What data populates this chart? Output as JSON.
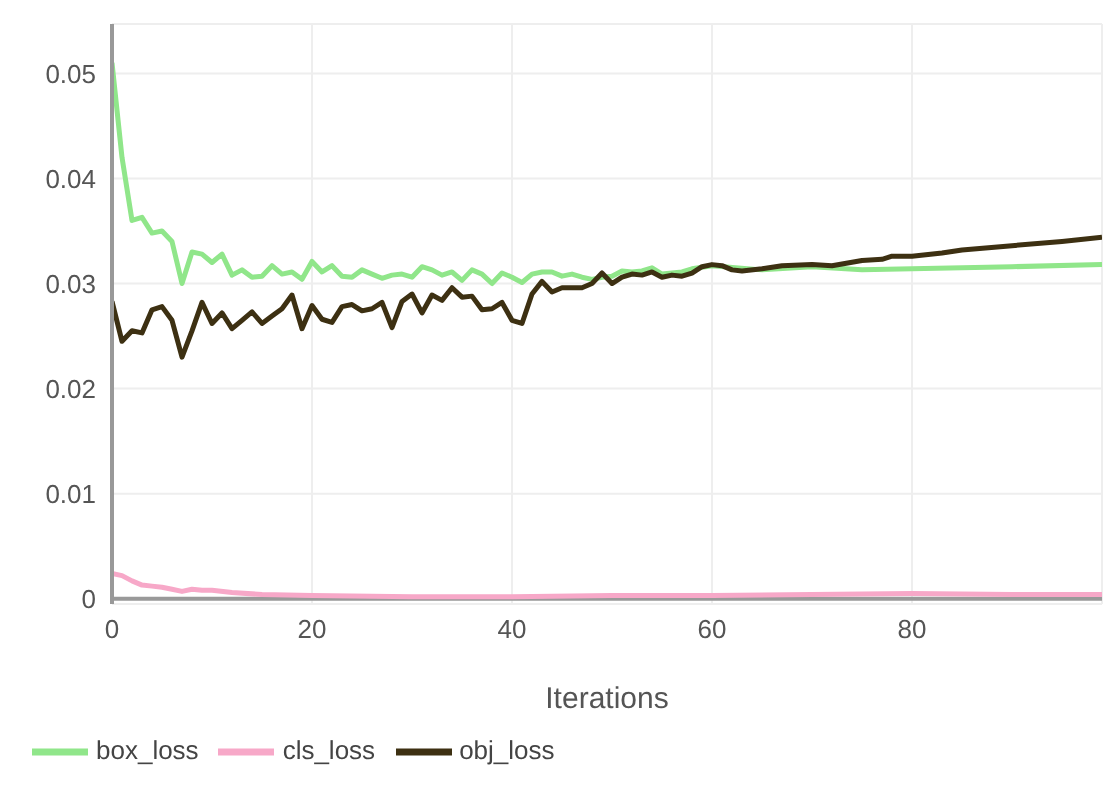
{
  "chart_data": {
    "type": "line",
    "xlabel": "Iterations",
    "xlim": [
      0,
      99
    ],
    "xticks": [
      0,
      20,
      40,
      60,
      80
    ],
    "ylim": [
      -0.0005,
      0.0547
    ],
    "yticks": [
      0,
      0.01,
      0.02,
      0.03,
      0.04,
      0.05
    ],
    "grid": true,
    "legend": "bottom",
    "series": [
      {
        "name": "box_loss",
        "color": "#90e68a",
        "x": [
          0,
          1,
          2,
          3,
          4,
          5,
          6,
          7,
          8,
          9,
          10,
          11,
          12,
          13,
          14,
          15,
          16,
          17,
          18,
          19,
          20,
          21,
          22,
          23,
          24,
          25,
          26,
          27,
          28,
          29,
          30,
          31,
          32,
          33,
          34,
          35,
          36,
          37,
          38,
          39,
          40,
          41,
          42,
          43,
          44,
          45,
          46,
          47,
          48,
          49,
          50,
          51,
          52,
          53,
          54,
          55,
          56,
          57,
          58,
          60,
          65,
          70,
          75,
          80,
          90,
          99
        ],
        "values": [
          0.051,
          0.042,
          0.036,
          0.0363,
          0.0348,
          0.035,
          0.034,
          0.03,
          0.033,
          0.0328,
          0.032,
          0.0328,
          0.0308,
          0.0313,
          0.0306,
          0.0307,
          0.0317,
          0.0309,
          0.0311,
          0.0304,
          0.0321,
          0.0311,
          0.0317,
          0.0307,
          0.0306,
          0.0313,
          0.0309,
          0.0305,
          0.0308,
          0.0309,
          0.0306,
          0.0316,
          0.0313,
          0.0308,
          0.0311,
          0.0303,
          0.0313,
          0.0309,
          0.03,
          0.031,
          0.0306,
          0.0301,
          0.0309,
          0.0311,
          0.0311,
          0.0307,
          0.0309,
          0.0306,
          0.0304,
          0.0306,
          0.0307,
          0.0312,
          0.0311,
          0.0312,
          0.0315,
          0.0309,
          0.031,
          0.0311,
          0.0314,
          0.0317,
          0.0313,
          0.0316,
          0.0313,
          0.0314,
          0.0316,
          0.0318
        ]
      },
      {
        "name": "cls_loss",
        "color": "#f7a8c8",
        "x": [
          0,
          1,
          2,
          3,
          4,
          5,
          6,
          7,
          8,
          9,
          10,
          12,
          15,
          20,
          30,
          40,
          50,
          60,
          70,
          80,
          90,
          99
        ],
        "values": [
          0.0024,
          0.0022,
          0.0017,
          0.0013,
          0.0012,
          0.0011,
          0.0009,
          0.0007,
          0.0009,
          0.0008,
          0.0008,
          0.0006,
          0.0004,
          0.0003,
          0.0002,
          0.0002,
          0.0003,
          0.0003,
          0.0004,
          0.0005,
          0.0004,
          0.0004
        ]
      },
      {
        "name": "obj_loss",
        "color": "#3d3012",
        "x": [
          0,
          1,
          2,
          3,
          4,
          5,
          6,
          7,
          8,
          9,
          10,
          11,
          12,
          13,
          14,
          15,
          16,
          17,
          18,
          19,
          20,
          21,
          22,
          23,
          24,
          25,
          26,
          27,
          28,
          29,
          30,
          31,
          32,
          33,
          34,
          35,
          36,
          37,
          38,
          39,
          40,
          41,
          42,
          43,
          44,
          45,
          46,
          47,
          48,
          49,
          50,
          51,
          52,
          53,
          54,
          55,
          56,
          57,
          58,
          59,
          60,
          61,
          62,
          63,
          65,
          67,
          70,
          72,
          75,
          77,
          78,
          80,
          83,
          85,
          90,
          95,
          99
        ],
        "values": [
          0.0283,
          0.0245,
          0.0255,
          0.0253,
          0.0275,
          0.0278,
          0.0265,
          0.023,
          0.0255,
          0.0282,
          0.0262,
          0.0272,
          0.0257,
          0.0265,
          0.0273,
          0.0262,
          0.0269,
          0.0276,
          0.0289,
          0.0257,
          0.0279,
          0.0266,
          0.0263,
          0.0278,
          0.028,
          0.0274,
          0.0276,
          0.0282,
          0.0258,
          0.0283,
          0.029,
          0.0272,
          0.0289,
          0.0284,
          0.0296,
          0.0287,
          0.0288,
          0.0275,
          0.0276,
          0.0282,
          0.0265,
          0.0262,
          0.029,
          0.0302,
          0.0292,
          0.0296,
          0.0296,
          0.0296,
          0.03,
          0.031,
          0.03,
          0.0306,
          0.0309,
          0.0308,
          0.0311,
          0.0306,
          0.0308,
          0.0307,
          0.031,
          0.0316,
          0.0318,
          0.0317,
          0.0313,
          0.0312,
          0.0314,
          0.0317,
          0.0318,
          0.0317,
          0.0322,
          0.0323,
          0.0326,
          0.0326,
          0.0329,
          0.0332,
          0.0336,
          0.034,
          0.0344
        ]
      }
    ]
  }
}
